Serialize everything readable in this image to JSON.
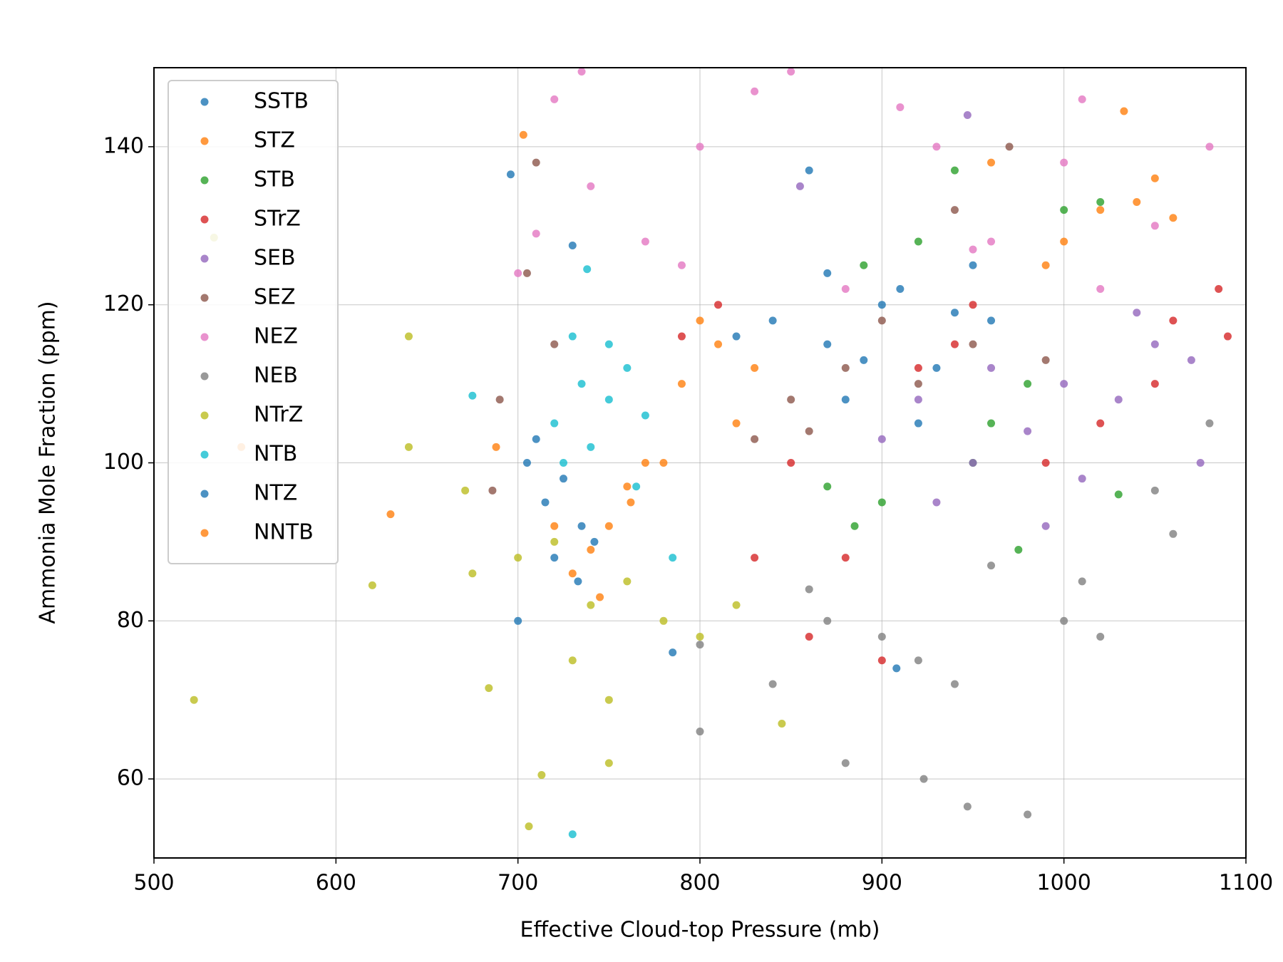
{
  "chart_data": {
    "type": "scatter",
    "x_label": "Effective Cloud-top Pressure (mb)",
    "y_label": "Ammonia Mole Fraction (ppm)",
    "xlim": [
      500,
      1100
    ],
    "xticks": [
      500,
      600,
      700,
      800,
      900,
      1000,
      1100
    ],
    "ylim": [
      50,
      150
    ],
    "yticks": [
      60,
      80,
      100,
      120,
      140
    ],
    "grid": true,
    "legend": "upper left",
    "series": [
      {
        "name": "SSTB",
        "color": "#1f77b4",
        "x": [
          840,
          870,
          900,
          930,
          950,
          880,
          910,
          860,
          696,
          730,
          960,
          820,
          890,
          920,
          940,
          870
        ],
        "values": [
          118,
          115,
          120,
          112,
          125,
          108,
          122,
          137,
          136.5,
          127.5,
          118,
          116,
          113,
          105,
          119,
          124
        ]
      },
      {
        "name": "STZ",
        "color": "#ff7f0e",
        "x": [
          790,
          810,
          820,
          800,
          780,
          830,
          1000,
          1020,
          1040,
          1050,
          1033,
          703,
          990,
          760,
          1060,
          960
        ],
        "values": [
          110,
          115,
          105,
          118,
          100,
          112,
          128,
          132,
          133,
          136,
          144.5,
          141.5,
          125,
          97,
          131,
          138
        ]
      },
      {
        "name": "STB",
        "color": "#2ca02c",
        "x": [
          870,
          890,
          920,
          950,
          980,
          1000,
          1020,
          975,
          900,
          940,
          1030,
          885,
          960
        ],
        "values": [
          97,
          125,
          128,
          100,
          110,
          132,
          133,
          89,
          95,
          137,
          96,
          92,
          105
        ]
      },
      {
        "name": "STrZ",
        "color": "#d62728",
        "x": [
          790,
          810,
          850,
          880,
          920,
          950,
          1020,
          1050,
          1090,
          1085,
          860,
          830,
          990,
          1060,
          900,
          940
        ],
        "values": [
          116,
          120,
          100,
          88,
          112,
          120,
          105,
          110,
          116,
          122,
          78,
          88,
          100,
          118,
          75,
          115
        ]
      },
      {
        "name": "SEB",
        "color": "#9467bd",
        "x": [
          920,
          950,
          980,
          1000,
          1050,
          1070,
          1040,
          930,
          960,
          1010,
          990,
          1075,
          947,
          855,
          1030,
          900
        ],
        "values": [
          108,
          100,
          104,
          110,
          115,
          113,
          119,
          95,
          112,
          98,
          92,
          100,
          144,
          135,
          108,
          103
        ]
      },
      {
        "name": "SEZ",
        "color": "#8c564b",
        "x": [
          710,
          705,
          690,
          720,
          850,
          880,
          920,
          950,
          970,
          940,
          860,
          830,
          686,
          900,
          990
        ],
        "values": [
          138,
          124,
          108,
          115,
          108,
          112,
          110,
          115,
          140,
          132,
          104,
          103,
          96.5,
          118,
          113
        ]
      },
      {
        "name": "NEZ",
        "color": "#e377c2",
        "x": [
          710,
          740,
          770,
          800,
          830,
          850,
          880,
          910,
          930,
          950,
          1000,
          1050,
          1080,
          735,
          700,
          960,
          1020,
          790,
          720,
          1010
        ],
        "values": [
          129,
          135,
          128,
          140,
          147,
          149.5,
          122,
          145,
          140,
          127,
          138,
          130,
          140,
          149.5,
          124,
          128,
          122,
          125,
          146,
          146
        ]
      },
      {
        "name": "NEB",
        "color": "#7f7f7f",
        "x": [
          800,
          840,
          870,
          900,
          920,
          940,
          860,
          1000,
          1020,
          1060,
          980,
          947,
          880,
          923,
          1050,
          1080,
          800,
          960,
          1010
        ],
        "values": [
          77,
          72,
          80,
          78,
          75,
          72,
          84,
          80,
          78,
          91,
          55.5,
          56.5,
          62,
          60,
          96.5,
          105,
          66,
          87,
          85
        ]
      },
      {
        "name": "NTrZ",
        "color": "#bcbd22",
        "x": [
          720,
          740,
          760,
          780,
          800,
          820,
          700,
          730,
          750,
          713,
          706,
          750,
          522,
          620,
          640,
          640,
          671,
          684,
          675,
          533,
          845
        ],
        "values": [
          90,
          82,
          85,
          80,
          78,
          82,
          88,
          75,
          70,
          60.5,
          54,
          62,
          70,
          84.5,
          116,
          102,
          96.5,
          71.5,
          86,
          128.5,
          67
        ]
      },
      {
        "name": "NTB",
        "color": "#17becf",
        "x": [
          720,
          735,
          750,
          760,
          740,
          730,
          770,
          725,
          738,
          675,
          730,
          750,
          785,
          765
        ],
        "values": [
          105,
          110,
          108,
          112,
          102,
          116,
          106,
          100,
          124.5,
          108.5,
          53,
          115,
          88,
          97
        ]
      },
      {
        "name": "NTZ",
        "color": "#1f77b4",
        "x": [
          705,
          715,
          725,
          735,
          720,
          700,
          742,
          710,
          908,
          785,
          733
        ],
        "values": [
          100,
          95,
          98,
          92,
          88,
          80,
          90,
          103,
          74,
          76,
          85
        ]
      },
      {
        "name": "NNTB",
        "color": "#ff7f0e",
        "x": [
          630,
          688,
          750,
          740,
          730,
          762,
          770,
          745,
          720,
          548
        ],
        "values": [
          93.5,
          102,
          92,
          89,
          86,
          95,
          100,
          83,
          92,
          102
        ]
      }
    ]
  }
}
